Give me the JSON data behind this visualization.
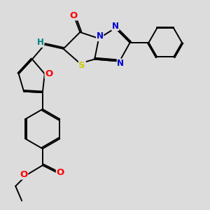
{
  "bg_color": "#dcdcdc",
  "bond_color": "#000000",
  "bond_width": 1.4,
  "atom_colors": {
    "O": "#ff0000",
    "N": "#0000cc",
    "S": "#cccc00",
    "H": "#008080",
    "C": "#000000"
  },
  "font_size": 8.5,
  "figsize": [
    3.0,
    3.0
  ],
  "dpi": 100
}
